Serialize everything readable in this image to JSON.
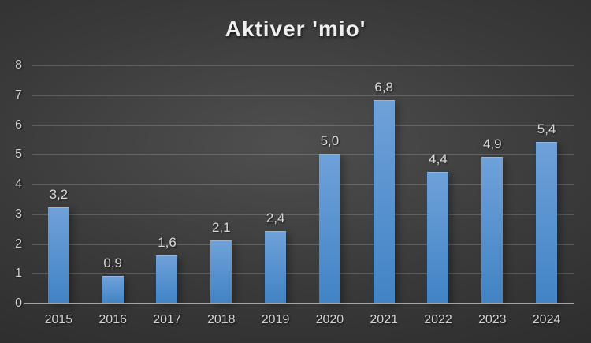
{
  "chart_data": {
    "type": "bar",
    "title": "Aktiver 'mio'",
    "categories": [
      "2015",
      "2016",
      "2017",
      "2018",
      "2019",
      "2020",
      "2021",
      "2022",
      "2023",
      "2024"
    ],
    "values": [
      3.2,
      0.9,
      1.6,
      2.1,
      2.4,
      5.0,
      6.8,
      4.4,
      4.9,
      5.4
    ],
    "value_labels": [
      "3,2",
      "0,9",
      "1,6",
      "2,1",
      "2,4",
      "5,0",
      "6,8",
      "4,4",
      "4,9",
      "5,4"
    ],
    "xlabel": "",
    "ylabel": "",
    "ylim": [
      0,
      8
    ],
    "yticks": [
      0,
      1,
      2,
      3,
      4,
      5,
      6,
      7,
      8
    ],
    "grid": true,
    "legend": false,
    "decimal_separator": ",",
    "style": {
      "bar_color_top": "#6FA1D9",
      "bar_color_bottom": "#4183C5",
      "bar_top_edge": "#8FB5E2",
      "background_center": "#4F4F4F",
      "background_edge": "#242424",
      "title_color": "#EFEFEF",
      "tick_label_color": "#D2D2D2",
      "data_label_color": "#D9D9D9",
      "gridline_color": "#5E5E5E",
      "axis_line_color": "#A6A6A6"
    }
  }
}
